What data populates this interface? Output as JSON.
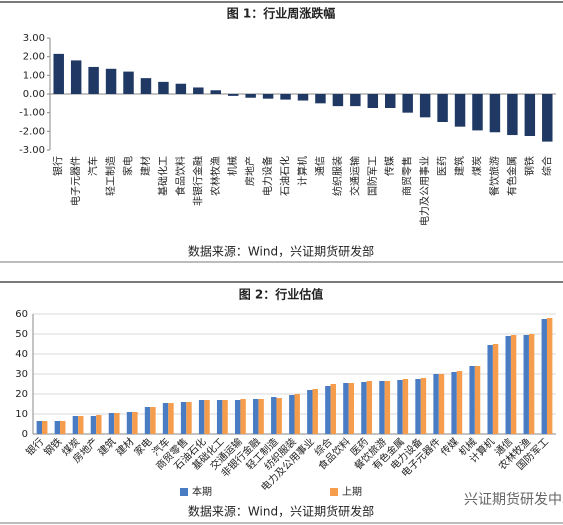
{
  "chart_data": [
    {
      "type": "bar",
      "title": "图 1：行业周涨跌幅",
      "source": "数据来源：Wind，兴证期货研发部",
      "categories": [
        "银行",
        "电子元器件",
        "汽车",
        "轻工制造",
        "家电",
        "建材",
        "基础化工",
        "食品饮料",
        "非银行金融",
        "农林牧渔",
        "机械",
        "房地产",
        "电力设备",
        "石油石化",
        "计算机",
        "通信",
        "纺织服装",
        "交通运输",
        "国防军工",
        "传媒",
        "商贸零售",
        "电力及公用事业",
        "医药",
        "建筑",
        "煤炭",
        "餐饮旅游",
        "有色金属",
        "钢铁",
        "综合"
      ],
      "values": [
        2.15,
        1.8,
        1.45,
        1.35,
        1.2,
        0.85,
        0.65,
        0.55,
        0.35,
        0.2,
        -0.1,
        -0.2,
        -0.25,
        -0.3,
        -0.35,
        -0.5,
        -0.65,
        -0.65,
        -0.75,
        -0.75,
        -1.0,
        -1.25,
        -1.5,
        -1.75,
        -1.95,
        -2.05,
        -2.2,
        -2.25,
        -2.55
      ],
      "color": "#1f3864",
      "ylim": [
        -3,
        3
      ],
      "yticks": [
        {
          "value": 3,
          "label": "3.00"
        },
        {
          "value": 2,
          "label": "2.00"
        },
        {
          "value": 1,
          "label": "1.00"
        },
        {
          "value": 0,
          "label": "0.00"
        },
        {
          "value": -1,
          "label": "-1.00"
        },
        {
          "value": -2,
          "label": "-2.00"
        },
        {
          "value": -3,
          "label": "-3.00"
        }
      ],
      "grid": false
    },
    {
      "type": "bar",
      "title": "图 2：行业估值",
      "source": "数据来源：Wind，兴证期货研发部",
      "categories": [
        "银行",
        "钢铁",
        "煤炭",
        "房地产",
        "建筑",
        "建材",
        "家电",
        "汽车",
        "商贸零售",
        "石油石化",
        "基础化工",
        "交通运输",
        "非银行金融",
        "轻工制造",
        "纺织服装",
        "电力及公用事业",
        "综合",
        "食品饮料",
        "医药",
        "餐饮旅游",
        "有色金属",
        "电力设备",
        "电子元器件",
        "传媒",
        "机械",
        "计算机",
        "通信",
        "农林牧渔",
        "国防军工"
      ],
      "series": [
        {
          "name": "本期",
          "color": "#4a7cc4",
          "values": [
            6.5,
            6.5,
            9,
            9,
            10.5,
            11,
            13.5,
            15.5,
            16,
            17,
            17,
            17,
            17.5,
            18.5,
            19.5,
            22,
            24,
            25.5,
            26,
            26.5,
            27,
            27.5,
            30,
            31,
            34,
            44.5,
            49,
            49.5,
            57.5
          ]
        },
        {
          "name": "上期",
          "color": "#f59d4c",
          "values": [
            6.5,
            6.5,
            9,
            9.5,
            10.5,
            11,
            13.5,
            15.5,
            16,
            17,
            17,
            17.5,
            17.5,
            18,
            20,
            22.5,
            25,
            25.5,
            26.5,
            26.5,
            27.5,
            28,
            30,
            31.5,
            34,
            45,
            49.5,
            50,
            58
          ]
        }
      ],
      "ylim": [
        0,
        60
      ],
      "yticks": [
        0,
        10,
        20,
        30,
        40,
        50,
        60
      ],
      "grid": true,
      "legend": "bottom"
    }
  ],
  "watermark": "兴证期货研发中心"
}
